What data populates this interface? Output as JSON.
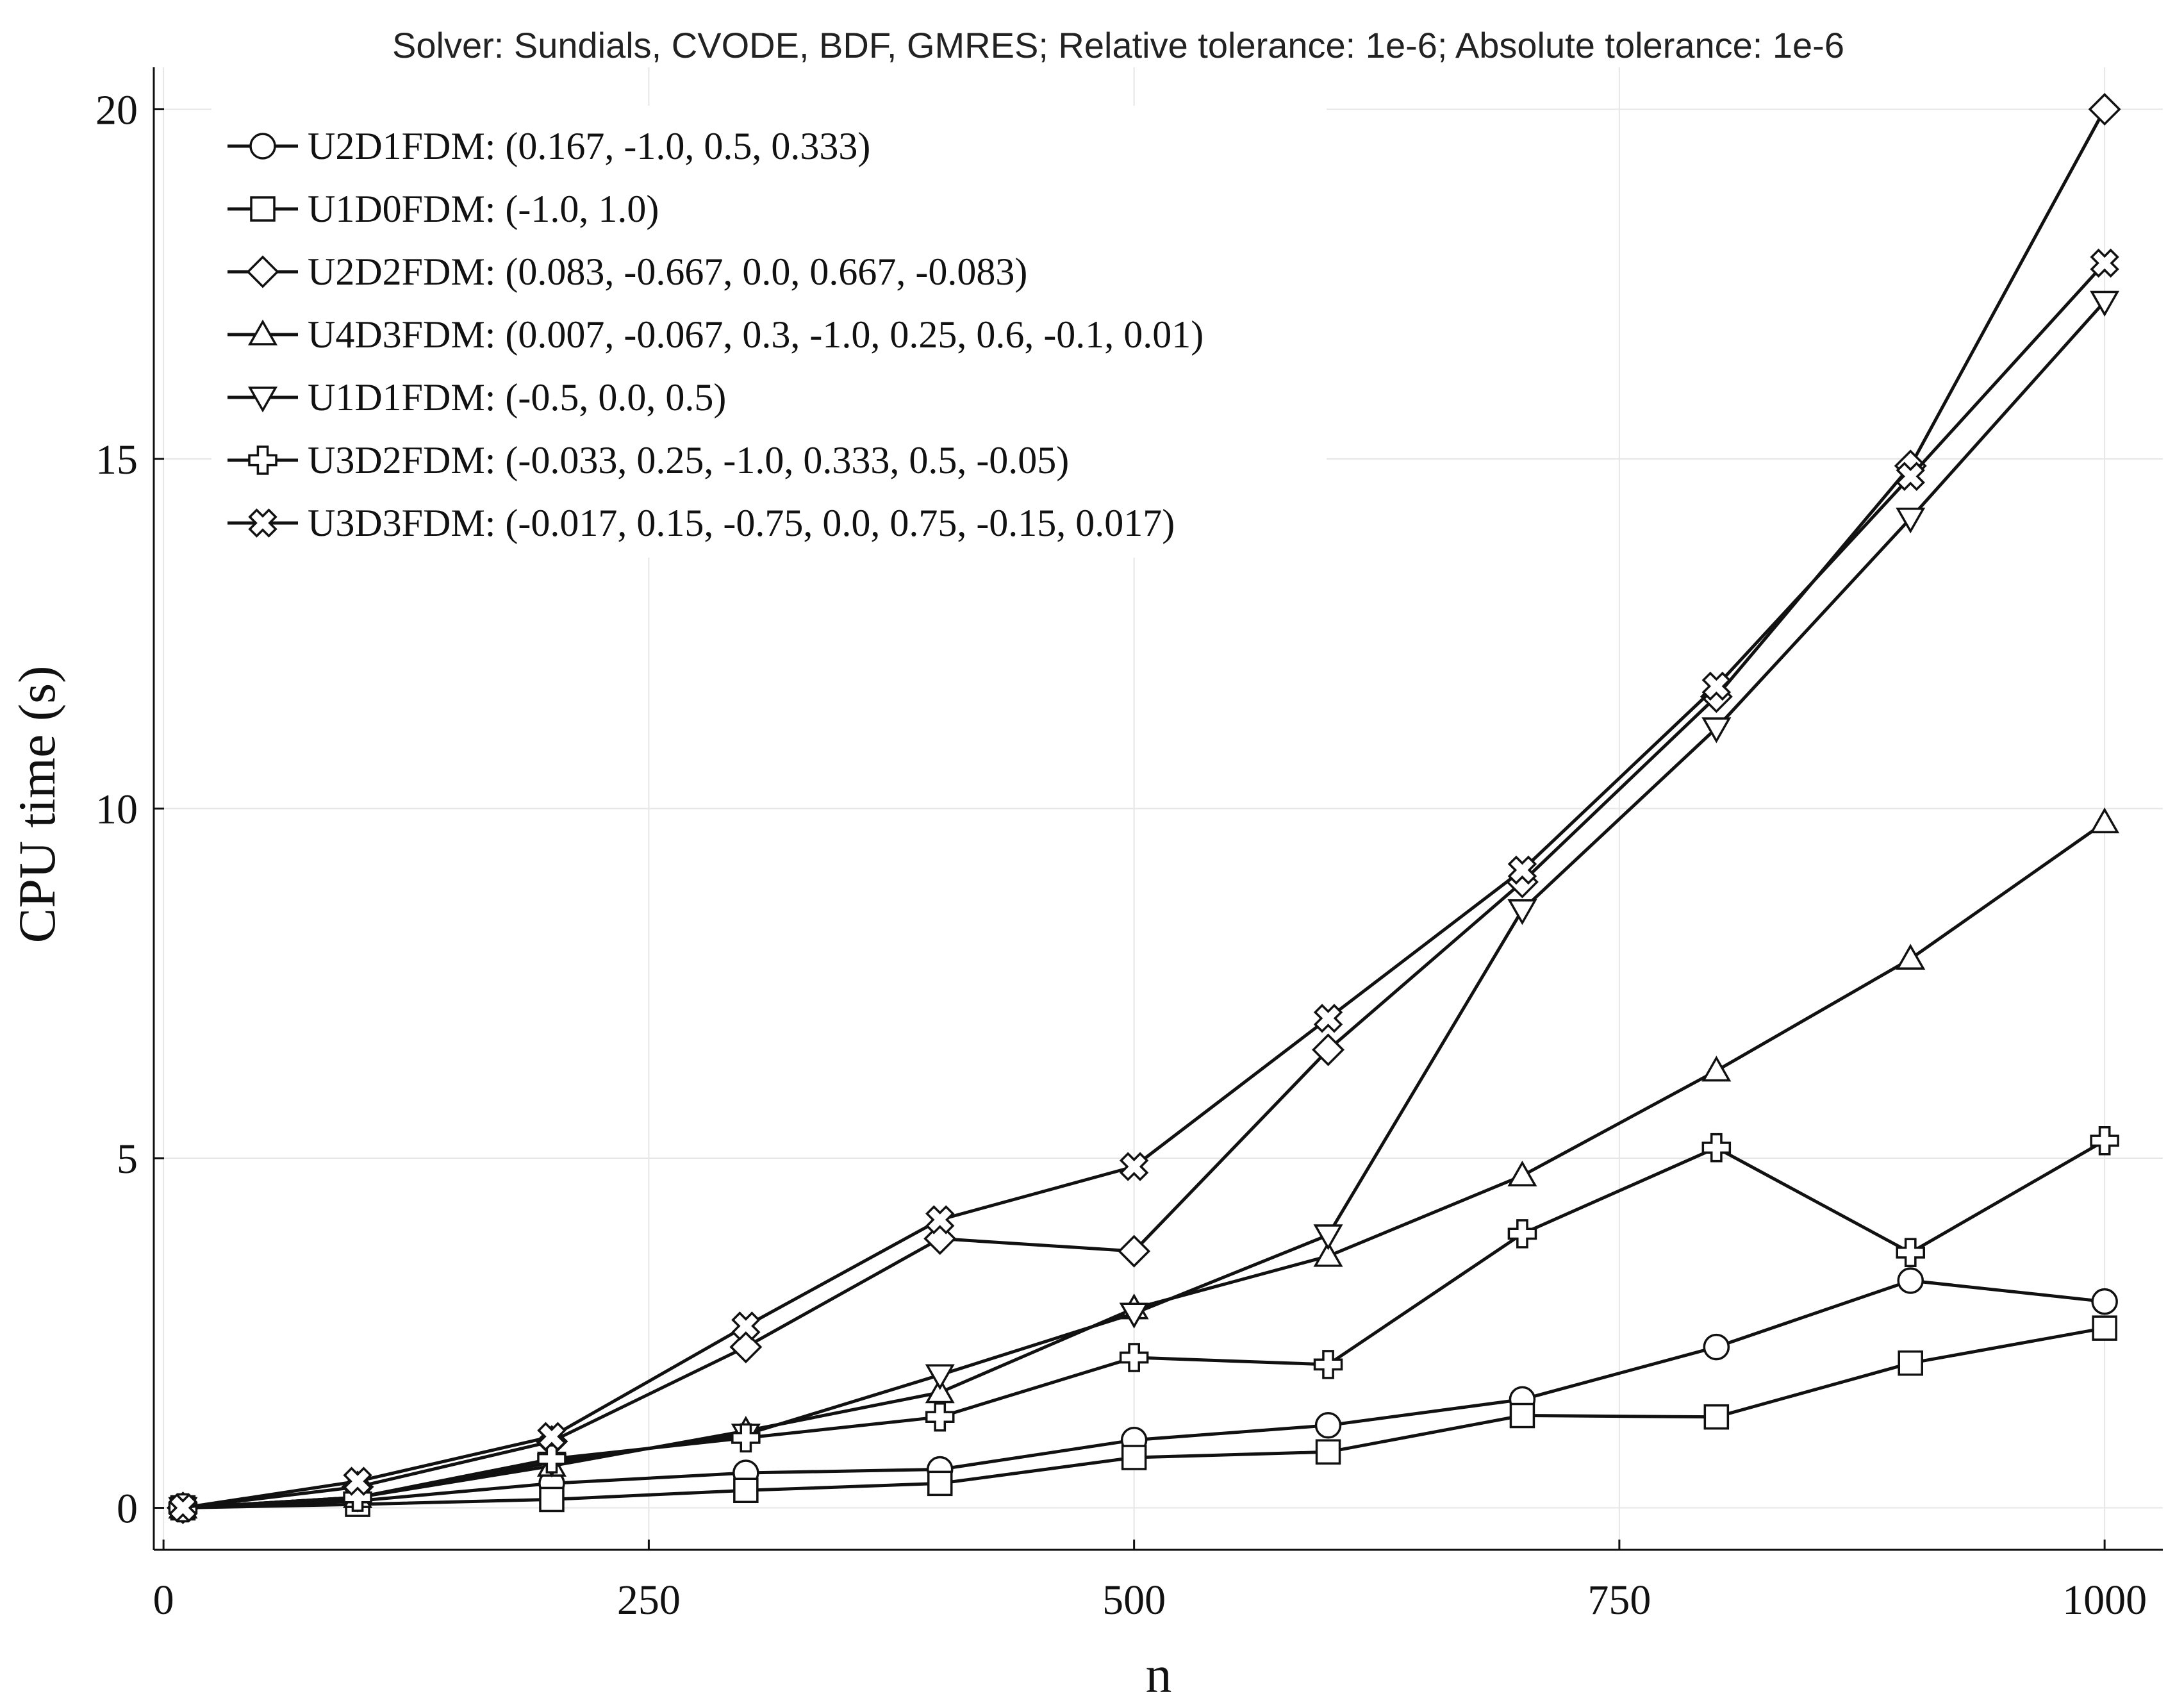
{
  "chart_data": {
    "type": "line",
    "title": "Solver: Sundials, CVODE, BDF, GMRES; Relative tolerance: 1e-6; Absolute tolerance: 1e-6",
    "xlabel": "n",
    "ylabel": "CPU time (s)",
    "xlim": [
      -5,
      1030
    ],
    "ylim": [
      -0.6,
      20.6
    ],
    "xticks": [
      0,
      250,
      500,
      750,
      1000
    ],
    "yticks": [
      0,
      5,
      10,
      15,
      20
    ],
    "grid": true,
    "legend_position": "top-left",
    "x": [
      10,
      100,
      200,
      300,
      400,
      500,
      600,
      700,
      800,
      900,
      1000
    ],
    "series": [
      {
        "name": "U2D1FDM: (0.167, -1.0, 0.5, 0.333)",
        "marker": "circle",
        "values": [
          0,
          0.1,
          0.35,
          0.5,
          0.55,
          0.97,
          1.18,
          1.55,
          2.3,
          3.25,
          2.95
        ]
      },
      {
        "name": "U1D0FDM: (-1.0, 1.0)",
        "marker": "square",
        "values": [
          0,
          0.05,
          0.12,
          0.25,
          0.35,
          0.72,
          0.8,
          1.32,
          1.3,
          2.07,
          2.57
        ]
      },
      {
        "name": "U2D2FDM: (0.083, -0.667, 0.0, 0.667, -0.083)",
        "marker": "diamond",
        "values": [
          0,
          0.3,
          0.95,
          2.3,
          3.85,
          3.67,
          6.55,
          8.95,
          11.6,
          14.9,
          20.0
        ]
      },
      {
        "name": "U4D3FDM: (0.007, -0.067, 0.3, -1.0, 0.25, 0.6, -0.1, 0.01)",
        "marker": "triangle-up",
        "values": [
          0,
          0.15,
          0.6,
          1.1,
          1.65,
          2.85,
          3.6,
          4.75,
          6.25,
          7.85,
          9.8
        ]
      },
      {
        "name": "U1D1FDM: (-0.5, 0.0, 0.5)",
        "marker": "triangle-down",
        "values": [
          0,
          0.15,
          0.65,
          1.05,
          1.9,
          2.78,
          3.9,
          8.55,
          11.15,
          14.15,
          17.25
        ]
      },
      {
        "name": "U3D2FDM: (-0.033, 0.25, -1.0, 0.333, 0.5, -0.05)",
        "marker": "cross",
        "values": [
          0,
          0.15,
          0.7,
          1.0,
          1.3,
          2.15,
          2.05,
          3.92,
          5.15,
          3.65,
          5.25
        ]
      },
      {
        "name": "U3D3FDM: (-0.017, 0.15, -0.75, 0.0, 0.75, -0.15, 0.017)",
        "marker": "x",
        "values": [
          0,
          0.38,
          1.02,
          2.6,
          4.12,
          4.88,
          7.0,
          9.12,
          11.75,
          14.75,
          17.8
        ]
      }
    ]
  }
}
